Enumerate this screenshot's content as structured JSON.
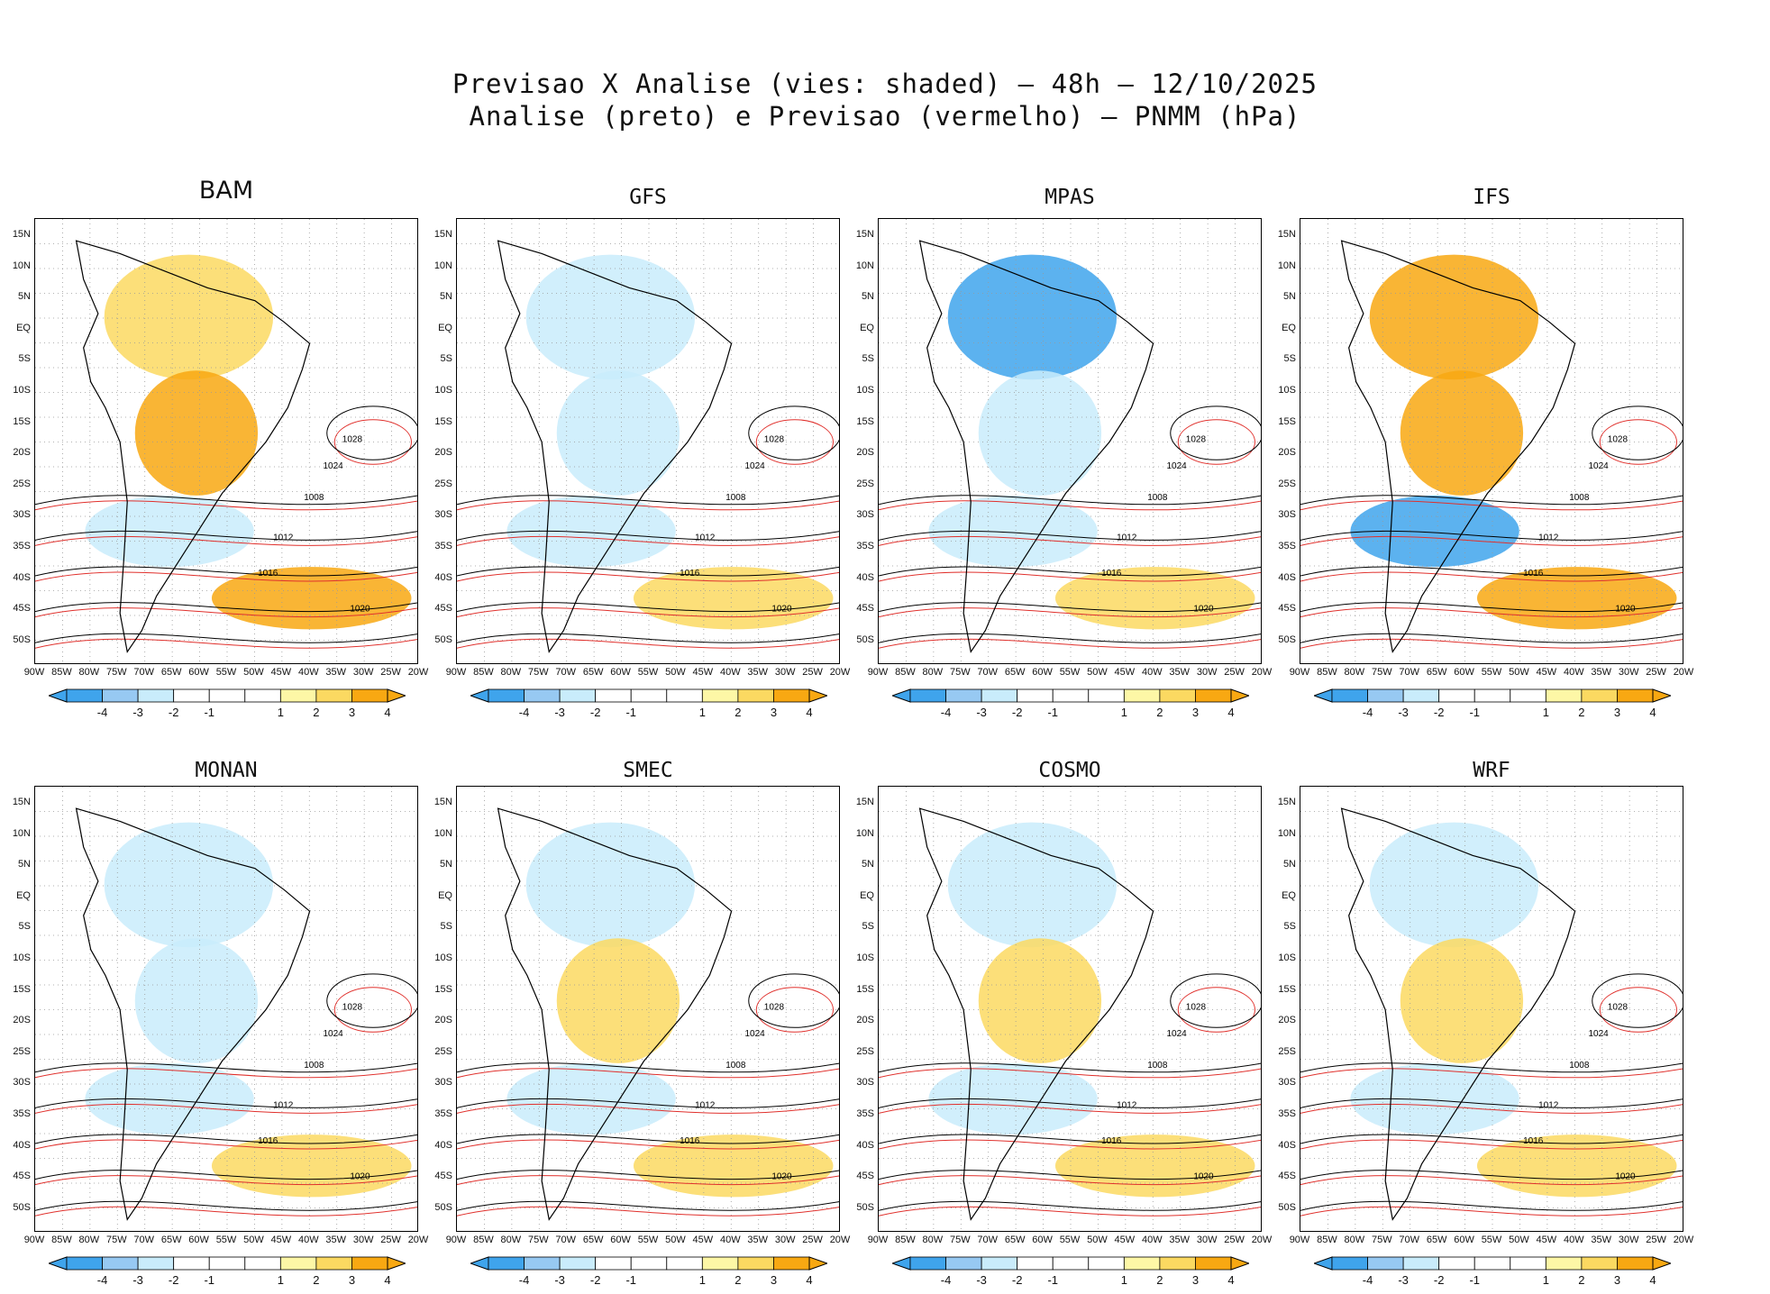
{
  "header": {
    "line1": "Previsao X Analise (vies: shaded) – 48h – 12/10/2025",
    "line2": "Analise (preto) e Previsao (vermelho) – PNMM (hPa)"
  },
  "axes": {
    "y_ticks": [
      "15N",
      "10N",
      "5N",
      "EQ",
      "5S",
      "10S",
      "15S",
      "20S",
      "25S",
      "30S",
      "35S",
      "40S",
      "45S",
      "50S"
    ],
    "x_ticks": [
      "90W",
      "85W",
      "80W",
      "75W",
      "70W",
      "65W",
      "60W",
      "55W",
      "50W",
      "45W",
      "40W",
      "35W",
      "30W",
      "25W",
      "20W"
    ]
  },
  "colors": {
    "neg4": "#3fa4ec",
    "neg3": "#97c9f2",
    "neg2": "#c9ecfb",
    "neutral": "#ffffff",
    "pos2": "#fdf7a6",
    "pos3": "#fbd961",
    "pos4": "#f8a812",
    "analysis_line": "#000000",
    "forecast_line": "#e0302c"
  },
  "colorbar": {
    "labels": [
      "-4",
      "-3",
      "-2",
      "-1",
      "1",
      "2",
      "3",
      "4"
    ]
  },
  "panels": [
    {
      "name": "BAM",
      "bias": {
        "north": "pos",
        "central": "pos4",
        "south": "neg",
        "atlantic": "pos4"
      }
    },
    {
      "name": "GFS",
      "bias": {
        "north": "neg",
        "central": "neg",
        "south": "neg",
        "atlantic": "pos"
      }
    },
    {
      "name": "MPAS",
      "bias": {
        "north": "neg4",
        "central": "neg",
        "south": "neg",
        "atlantic": "pos"
      }
    },
    {
      "name": "IFS",
      "bias": {
        "north": "pos4",
        "central": "pos4",
        "south": "neg4",
        "atlantic": "pos4"
      }
    },
    {
      "name": "MONAN",
      "bias": {
        "north": "neg",
        "central": "neg",
        "south": "neg",
        "atlantic": "pos"
      }
    },
    {
      "name": "SMEC",
      "bias": {
        "north": "neg",
        "central": "pos",
        "south": "neg",
        "atlantic": "pos"
      }
    },
    {
      "name": "COSMO",
      "bias": {
        "north": "neg",
        "central": "pos",
        "south": "neg",
        "atlantic": "pos"
      }
    },
    {
      "name": "WRF",
      "bias": {
        "north": "neg",
        "central": "pos",
        "south": "neg",
        "atlantic": "pos"
      }
    }
  ],
  "isobar_labels": [
    "1008",
    "1012",
    "1016",
    "1020",
    "1024",
    "1028"
  ]
}
